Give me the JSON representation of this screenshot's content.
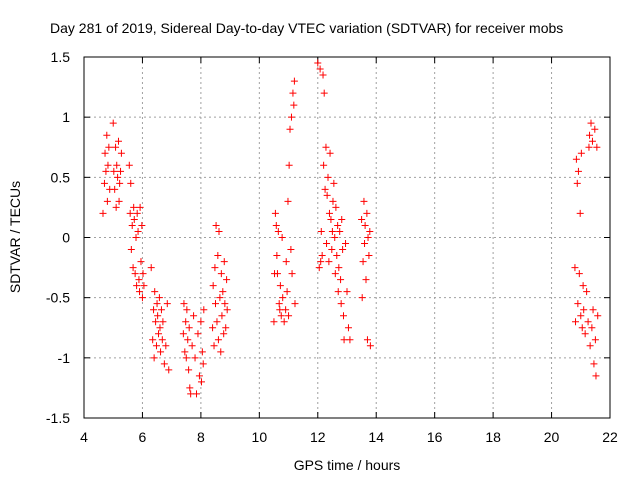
{
  "chart_data": {
    "type": "scatter",
    "title": "Day 281 of 2019, Sidereal Day-to-day VTEC variation (SDTVAR) for receiver mobs",
    "xlabel": "GPS time / hours",
    "ylabel": "SDTVAR / TECUs",
    "xlim": [
      4,
      22
    ],
    "ylim": [
      -1.5,
      1.5
    ],
    "x_ticks": [
      4,
      6,
      8,
      10,
      12,
      14,
      16,
      18,
      20,
      22
    ],
    "y_ticks": [
      -1.5,
      -1,
      -0.5,
      0,
      0.5,
      1,
      1.5
    ],
    "x_tick_labels": [
      "4",
      "6",
      "8",
      "10",
      "12",
      "14",
      "16",
      "18",
      "20",
      "22"
    ],
    "y_tick_labels": [
      "-1.5",
      "-1",
      "-0.5",
      "0",
      "0.5",
      "1",
      "1.5"
    ],
    "grid": true,
    "marker": "+",
    "color": "#ff0000",
    "series": [
      {
        "name": "SDTVAR",
        "x": [
          4.65,
          4.7,
          4.72,
          4.75,
          4.78,
          4.8,
          4.82,
          4.85,
          4.88,
          5.0,
          5.02,
          5.05,
          5.08,
          5.1,
          5.12,
          5.15,
          5.18,
          5.2,
          5.22,
          5.25,
          5.28,
          5.55,
          5.58,
          5.6,
          5.62,
          5.65,
          5.68,
          5.7,
          5.72,
          5.75,
          5.78,
          5.8,
          5.82,
          5.85,
          5.88,
          5.9,
          5.92,
          5.95,
          5.98,
          6.0,
          6.02,
          6.05,
          6.3,
          6.35,
          6.38,
          6.4,
          6.42,
          6.45,
          6.48,
          6.5,
          6.52,
          6.55,
          6.58,
          6.6,
          6.62,
          6.65,
          6.68,
          6.7,
          6.75,
          6.8,
          6.85,
          6.9,
          7.4,
          7.42,
          7.45,
          7.48,
          7.5,
          7.52,
          7.55,
          7.58,
          7.6,
          7.62,
          7.65,
          7.7,
          7.75,
          7.8,
          7.85,
          7.9,
          7.95,
          8.0,
          8.02,
          8.05,
          8.08,
          8.1,
          8.4,
          8.42,
          8.45,
          8.48,
          8.5,
          8.52,
          8.55,
          8.58,
          8.6,
          8.62,
          8.65,
          8.68,
          8.7,
          8.72,
          8.75,
          8.78,
          8.8,
          8.82,
          8.85,
          8.88,
          8.9,
          10.5,
          10.52,
          10.55,
          10.58,
          10.6,
          10.62,
          10.65,
          10.68,
          10.7,
          10.72,
          10.75,
          10.78,
          10.8,
          10.85,
          10.9,
          10.92,
          10.95,
          10.98,
          11.0,
          11.02,
          11.05,
          11.08,
          11.1,
          11.12,
          11.15,
          11.18,
          11.2,
          11.22,
          12.0,
          12.05,
          12.08,
          12.1,
          12.12,
          12.15,
          12.18,
          12.2,
          12.22,
          12.25,
          12.28,
          12.3,
          12.32,
          12.35,
          12.38,
          12.4,
          12.42,
          12.45,
          12.48,
          12.5,
          12.52,
          12.55,
          12.58,
          12.6,
          12.62,
          12.65,
          12.68,
          12.7,
          12.72,
          12.75,
          12.78,
          12.8,
          12.82,
          12.85,
          12.88,
          12.9,
          12.95,
          13.0,
          13.05,
          13.1,
          13.5,
          13.52,
          13.55,
          13.58,
          13.6,
          13.62,
          13.65,
          13.68,
          13.7,
          13.72,
          13.75,
          13.78,
          13.8,
          20.8,
          20.82,
          20.85,
          20.88,
          20.9,
          20.92,
          20.95,
          20.98,
          21.0,
          21.02,
          21.05,
          21.08,
          21.1,
          21.15,
          21.2,
          21.25,
          21.28,
          21.3,
          21.32,
          21.35,
          21.38,
          21.4,
          21.42,
          21.45,
          21.48,
          21.5,
          21.52,
          21.55,
          21.58
        ],
        "y": [
          0.2,
          0.45,
          0.7,
          0.55,
          0.85,
          0.3,
          0.6,
          0.75,
          0.4,
          0.95,
          0.55,
          0.4,
          0.75,
          0.25,
          0.6,
          0.5,
          0.8,
          0.3,
          0.45,
          0.55,
          0.7,
          0.6,
          0.2,
          0.45,
          -0.1,
          0.1,
          -0.25,
          0.25,
          0.15,
          -0.3,
          0.0,
          -0.4,
          0.2,
          0.05,
          -0.35,
          -0.45,
          0.25,
          -0.2,
          0.1,
          -0.5,
          -0.3,
          -0.4,
          -0.25,
          -0.85,
          -0.6,
          -1.0,
          -0.45,
          -0.7,
          -0.9,
          -0.55,
          -0.65,
          -0.8,
          -0.5,
          -0.75,
          -0.95,
          -0.6,
          -0.85,
          -0.7,
          -1.05,
          -0.9,
          -0.55,
          -1.1,
          -0.8,
          -0.55,
          -0.95,
          -0.7,
          -1.0,
          -0.6,
          -0.85,
          -1.1,
          -0.75,
          -1.25,
          -1.3,
          -0.9,
          -0.65,
          -1.0,
          -1.3,
          -0.8,
          -1.15,
          -0.7,
          -1.2,
          -0.95,
          -1.05,
          -0.6,
          -0.75,
          -0.4,
          -0.9,
          -0.25,
          -0.55,
          0.1,
          -0.7,
          -0.15,
          -0.85,
          0.05,
          -0.5,
          -0.95,
          -0.3,
          -0.65,
          -0.45,
          -0.8,
          -0.2,
          -0.55,
          -0.75,
          -0.35,
          -0.6,
          -0.7,
          -0.3,
          0.2,
          0.1,
          -0.15,
          -0.3,
          0.05,
          -0.55,
          -0.6,
          -0.4,
          -0.65,
          0.0,
          -0.5,
          -0.7,
          -0.6,
          -0.2,
          -0.45,
          0.3,
          -0.65,
          0.6,
          0.9,
          -0.1,
          1.0,
          -0.3,
          1.2,
          1.1,
          1.3,
          -0.55,
          1.45,
          -0.25,
          1.4,
          -0.2,
          0.05,
          -0.15,
          1.35,
          0.6,
          1.2,
          0.4,
          0.75,
          -0.05,
          0.35,
          0.5,
          -0.2,
          0.2,
          0.7,
          0.15,
          -0.1,
          0.05,
          0.3,
          0.45,
          0.0,
          -0.3,
          0.25,
          -0.15,
          0.1,
          -0.45,
          -0.25,
          0.05,
          -0.35,
          -0.55,
          0.15,
          -0.1,
          -0.65,
          -0.85,
          -0.05,
          -0.45,
          -0.75,
          -0.85,
          0.15,
          -0.5,
          -0.2,
          0.3,
          -0.05,
          0.1,
          -0.35,
          0.2,
          -0.85,
          0.0,
          -0.15,
          0.05,
          -0.9,
          -0.25,
          -0.7,
          0.65,
          0.45,
          -0.55,
          0.55,
          -0.3,
          0.2,
          -0.65,
          0.7,
          -0.75,
          -0.4,
          -0.6,
          -0.8,
          -0.45,
          -0.7,
          0.75,
          0.85,
          -0.9,
          0.95,
          -0.75,
          0.8,
          -0.6,
          -1.05,
          0.9,
          -0.85,
          -1.15,
          0.75,
          -0.65
        ]
      }
    ]
  }
}
